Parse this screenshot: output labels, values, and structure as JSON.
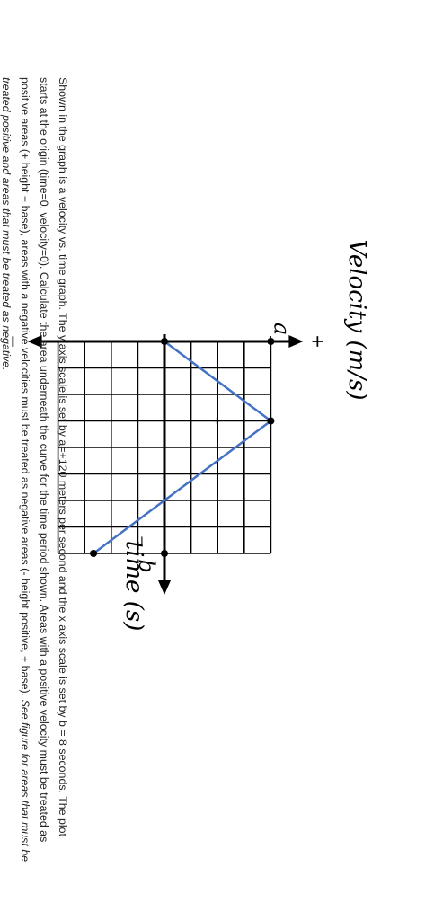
{
  "caption": {
    "main": "Shown in the graph is a velocity vs. time graph. The y axis scale is set by a=+120 meters per second and the x axis scale is set by b = 8 seconds. The plot starts at the origin (time=0, velocity=0). Calculate the area underneath the curve for the time period shown. Areas with a positive velocity must be treated as positive areas (+ height + base), areas with a negative velocities must be treated as negative areas (- height positive, + base).",
    "italic": "See figure for areas that must be treated positive and areas that must be treated as negative."
  },
  "colors": {
    "line": "#4472c4",
    "axis": "#000000",
    "grid": "#000000"
  },
  "chart_data": {
    "type": "line",
    "xlabel": "time (s)",
    "ylabel": "Velocity (m/s)",
    "x_tick_label": "b",
    "y_tick_label": "a",
    "x_tick_value": 8,
    "y_tick_value": 120,
    "xlim": [
      0,
      8
    ],
    "ylim": [
      -120,
      120
    ],
    "x": [
      0,
      3,
      8
    ],
    "y": [
      0,
      120,
      -80
    ],
    "grid": true,
    "region_labels": [
      {
        "text": "+",
        "x": 3,
        "y": 60
      },
      {
        "text": "−",
        "x": 7.5,
        "y": -25
      }
    ],
    "axis_end_labels": {
      "positive": "+",
      "negative": "−"
    }
  }
}
